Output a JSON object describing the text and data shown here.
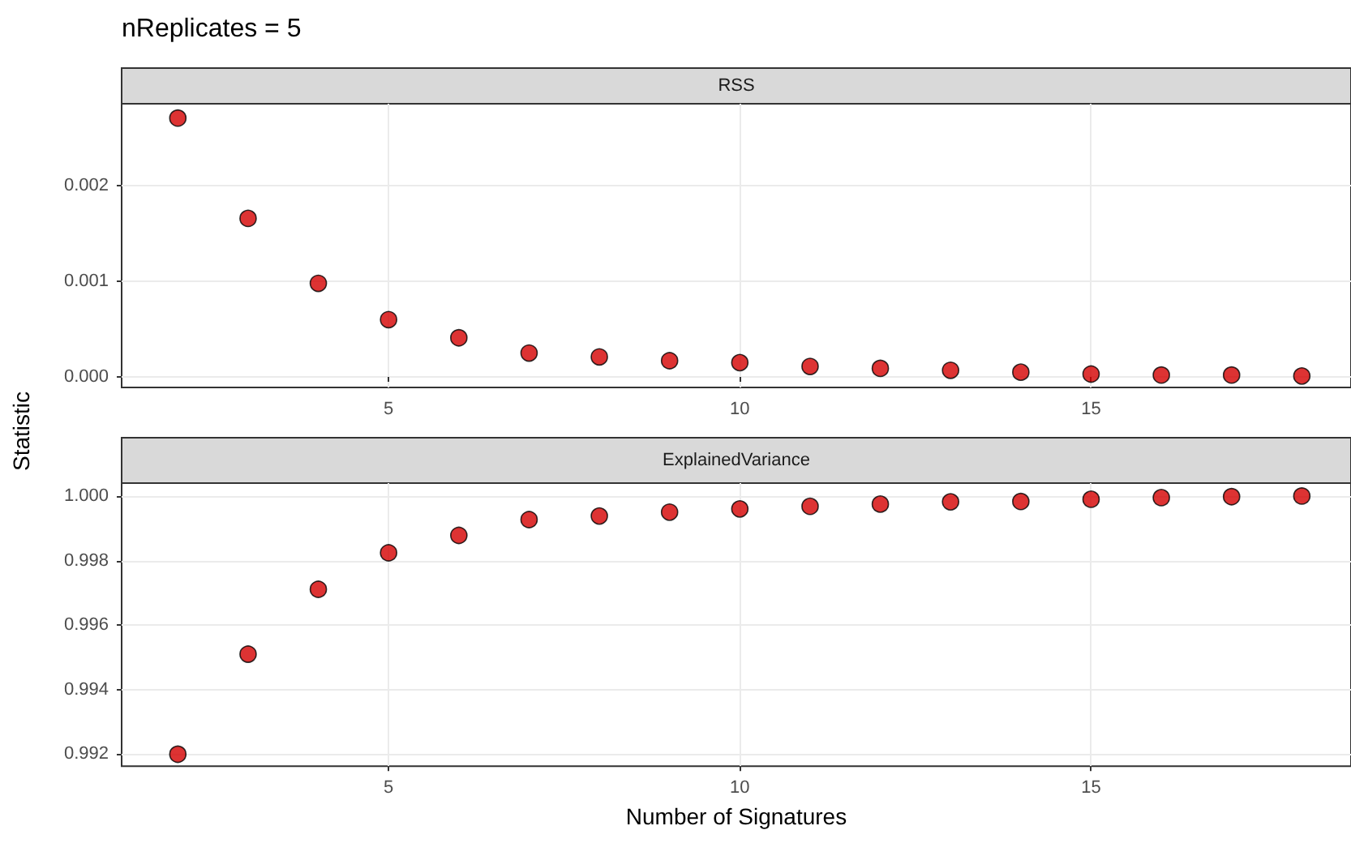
{
  "chart_data": [
    {
      "type": "scatter",
      "title": "RSS",
      "ylabel": "Statistic",
      "annotations": [
        "nReplicates = 5"
      ],
      "marker": "circle",
      "grid": true,
      "x": [
        2,
        3,
        4,
        5,
        6,
        7,
        8,
        9,
        10,
        11,
        12,
        13,
        14,
        15,
        16,
        17,
        18
      ],
      "series": [
        {
          "color": "#d40000",
          "values": [
            0.00271,
            0.00166,
            0.00098,
            0.0006,
            0.00041,
            0.00025,
            0.00021,
            0.00017,
            0.00015,
            0.00011,
            9e-05,
            7e-05,
            5e-05,
            3e-05,
            2e-05,
            2e-05,
            1e-05
          ]
        }
      ],
      "xlim": [
        1.2,
        18.7
      ],
      "xticks": [
        5,
        10,
        15
      ],
      "ylim": [
        -0.00011,
        0.00286
      ],
      "yticks": [
        {
          "value": 0,
          "label": "0.000"
        },
        {
          "value": 0.001,
          "label": "0.001"
        },
        {
          "value": 0.002,
          "label": "0.002"
        }
      ]
    },
    {
      "type": "scatter",
      "title": "ExplainedVariance",
      "xlabel": "Number of Signatures",
      "marker": "circle",
      "grid": true,
      "x": [
        2,
        3,
        4,
        5,
        6,
        7,
        8,
        9,
        10,
        11,
        12,
        13,
        14,
        15,
        16,
        17,
        18
      ],
      "series": [
        {
          "color": "#d40000",
          "values": [
            0.992,
            0.9951,
            0.99711,
            0.99824,
            0.99878,
            0.99927,
            0.99938,
            0.9995,
            0.9996,
            0.99968,
            0.99975,
            0.99982,
            0.99983,
            0.9999,
            0.99995,
            0.99998,
            1.0
          ]
        }
      ],
      "xlim": [
        1.2,
        18.7
      ],
      "xticks": [
        5,
        10,
        15
      ],
      "ylim": [
        0.99163,
        1.0004
      ],
      "yticks": [
        {
          "value": 0.992,
          "label": "0.992"
        },
        {
          "value": 0.994,
          "label": "0.994"
        },
        {
          "value": 0.996,
          "label": "0.996"
        },
        {
          "value": 0.998,
          "label": "0.998"
        },
        {
          "value": 1.0,
          "label": "1.000"
        }
      ]
    }
  ]
}
